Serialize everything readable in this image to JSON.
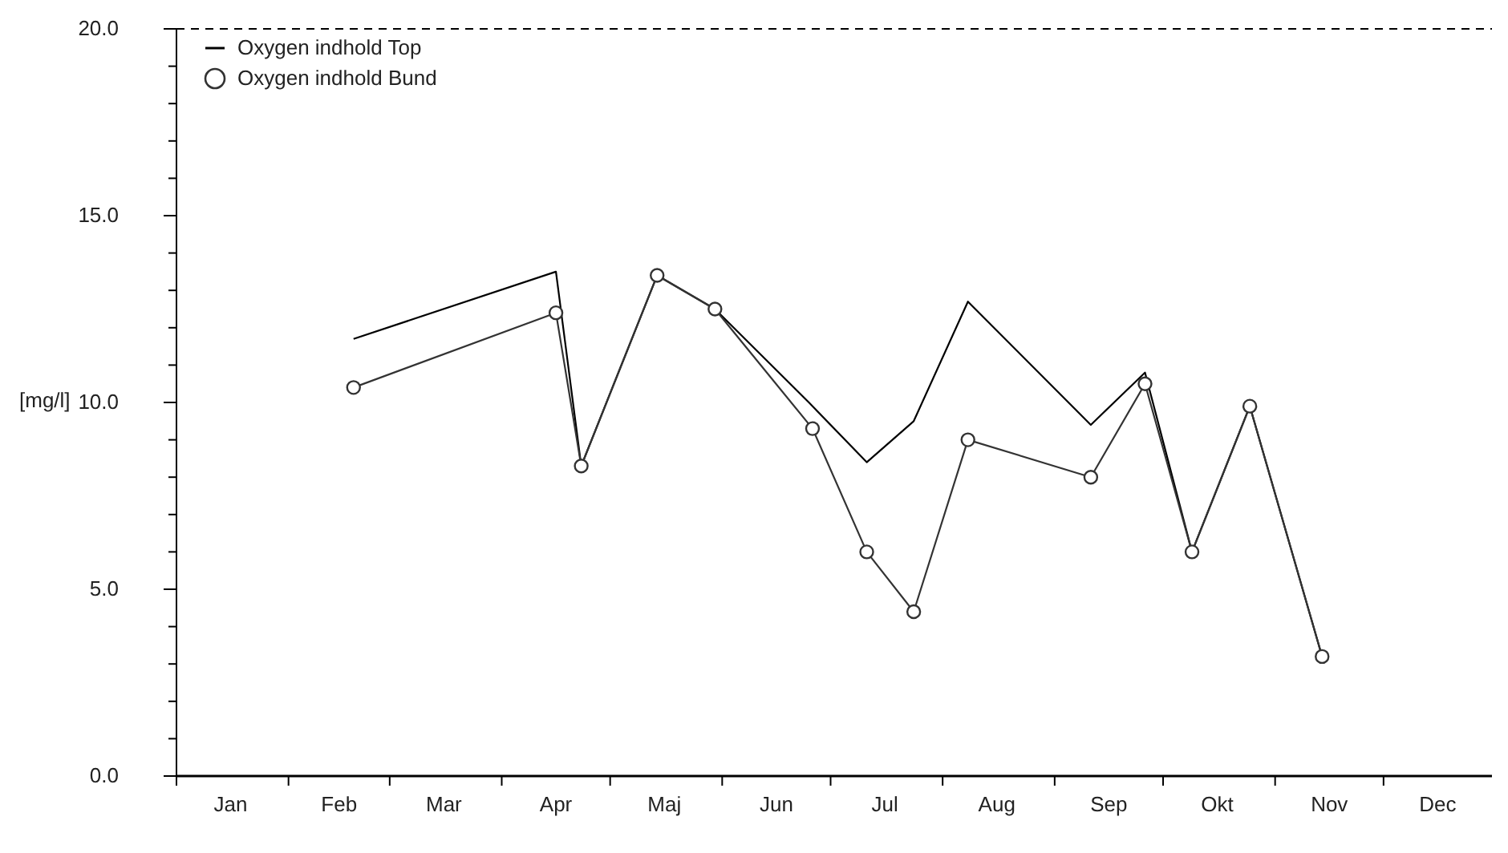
{
  "chart_data": {
    "type": "line",
    "ylabel": "[mg/l]",
    "xlim": [
      "--01-01",
      "--12-31"
    ],
    "xticks": [
      {
        "value": "--01-01",
        "label": null
      },
      {
        "value": "--01-16",
        "label": "Jan"
      },
      {
        "value": "--02-01",
        "label": null
      },
      {
        "value": "--02-15",
        "label": "Feb"
      },
      {
        "value": "--03-01",
        "label": null
      },
      {
        "value": "--03-16",
        "label": "Mar"
      },
      {
        "value": "--04-01",
        "label": null
      },
      {
        "value": "--04-16",
        "label": "Apr"
      },
      {
        "value": "--05-01",
        "label": null
      },
      {
        "value": "--05-16",
        "label": "Maj"
      },
      {
        "value": "--06-01",
        "label": null
      },
      {
        "value": "--06-16",
        "label": "Jun"
      },
      {
        "value": "--07-01",
        "label": null
      },
      {
        "value": "--07-16",
        "label": "Jul"
      },
      {
        "value": "--08-01",
        "label": null
      },
      {
        "value": "--08-16",
        "label": "Aug"
      },
      {
        "value": "--09-01",
        "label": null
      },
      {
        "value": "--09-16",
        "label": "Sep"
      },
      {
        "value": "--10-01",
        "label": null
      },
      {
        "value": "--10-16",
        "label": "Okt"
      },
      {
        "value": "--11-01",
        "label": null
      },
      {
        "value": "--11-16",
        "label": "Nov"
      },
      {
        "value": "--12-01",
        "label": null
      },
      {
        "value": "--12-16",
        "label": "Dec"
      }
    ],
    "ylim": [
      0,
      20
    ],
    "yticks": [
      {
        "value": 0,
        "label": "0.0"
      },
      {
        "value": 1,
        "label": null
      },
      {
        "value": 2,
        "label": null
      },
      {
        "value": 3,
        "label": null
      },
      {
        "value": 4,
        "label": null
      },
      {
        "value": 5,
        "label": "5.0"
      },
      {
        "value": 6,
        "label": null
      },
      {
        "value": 7,
        "label": null
      },
      {
        "value": 8,
        "label": null
      },
      {
        "value": 9,
        "label": null
      },
      {
        "value": 10,
        "label": "10.0"
      },
      {
        "value": 11,
        "label": null
      },
      {
        "value": 12,
        "label": null
      },
      {
        "value": 13,
        "label": null
      },
      {
        "value": 14,
        "label": null
      },
      {
        "value": 15,
        "label": "15.0"
      },
      {
        "value": 16,
        "label": null
      },
      {
        "value": 17,
        "label": null
      },
      {
        "value": 18,
        "label": null
      },
      {
        "value": 19,
        "label": null
      },
      {
        "value": 20,
        "label": "20.0"
      }
    ],
    "ref_lines": [
      {
        "axis": "y",
        "value": 20,
        "label": null,
        "color": "#000000",
        "line_style": "dashed"
      }
    ],
    "legend": "top left",
    "line_style": "solid",
    "series": [
      {
        "name": "Oxygen indhold Top",
        "color": "#000000",
        "marker": "none",
        "x": [
          "--02-19",
          "--04-16",
          "--04-23",
          "--05-14",
          "--05-30",
          "--06-25",
          "--07-11",
          "--07-24",
          "--08-08",
          "--09-11",
          "--09-26",
          "--10-09",
          "--10-25",
          "--11-14"
        ],
        "values": [
          11.7,
          13.5,
          8.3,
          13.4,
          12.5,
          10.0,
          8.4,
          9.5,
          12.7,
          9.4,
          10.8,
          6.0,
          9.9,
          3.2
        ]
      },
      {
        "name": "Oxygen indhold Bund",
        "color": "#333333",
        "marker": "circle",
        "x": [
          "--02-19",
          "--04-16",
          "--04-23",
          "--05-14",
          "--05-30",
          "--06-26",
          "--07-11",
          "--07-24",
          "--08-08",
          "--09-11",
          "--09-26",
          "--10-09",
          "--10-25",
          "--11-14"
        ],
        "values": [
          10.4,
          12.4,
          8.3,
          13.4,
          12.5,
          9.3,
          6.0,
          4.4,
          9.0,
          8.0,
          10.5,
          6.0,
          9.9,
          3.2
        ]
      }
    ]
  }
}
